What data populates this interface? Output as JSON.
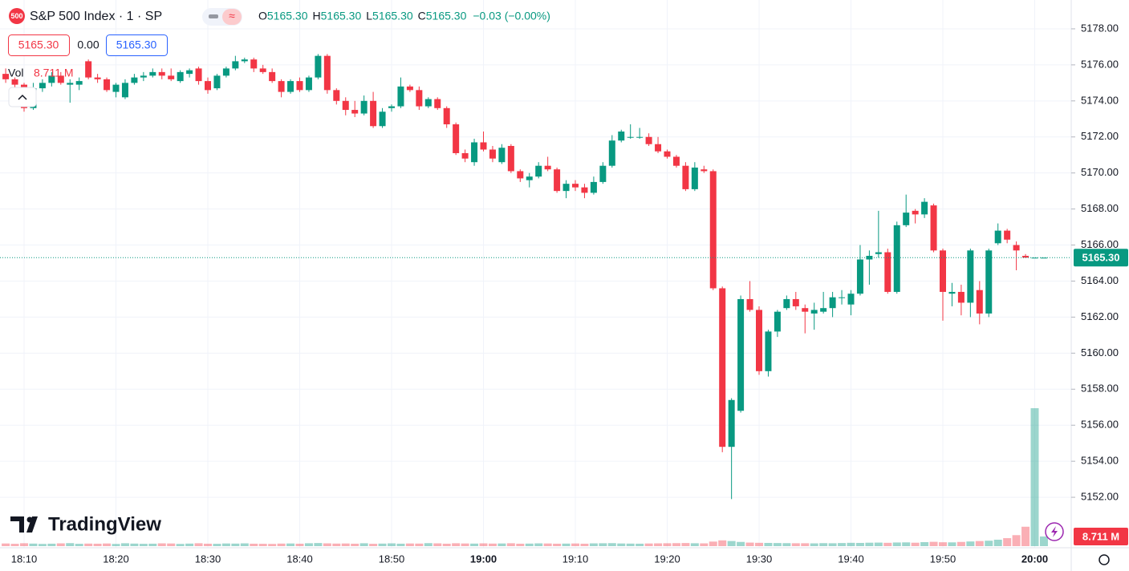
{
  "header": {
    "badge": "500",
    "title": "S&P 500 Index · 1 · SP",
    "ohlc": [
      {
        "key": "O",
        "value": "5165.30"
      },
      {
        "key": "H",
        "value": "5165.30"
      },
      {
        "key": "L",
        "value": "5165.30"
      },
      {
        "key": "C",
        "value": "5165.30"
      }
    ],
    "change": "−0.03 (−0.00%)",
    "boxes": [
      "5165.30",
      "0.00",
      "5165.30"
    ],
    "watermark": "TradingView"
  },
  "chart_data": {
    "type": "candlestick",
    "up_color": "#089981",
    "down_color": "#f23645",
    "x": [
      "18:08",
      "18:09",
      "18:10",
      "18:11",
      "18:12",
      "18:13",
      "18:14",
      "18:15",
      "18:16",
      "18:17",
      "18:18",
      "18:19",
      "18:20",
      "18:21",
      "18:22",
      "18:23",
      "18:24",
      "18:25",
      "18:26",
      "18:27",
      "18:28",
      "18:29",
      "18:30",
      "18:31",
      "18:32",
      "18:33",
      "18:34",
      "18:35",
      "18:36",
      "18:37",
      "18:38",
      "18:39",
      "18:40",
      "18:41",
      "18:42",
      "18:43",
      "18:44",
      "18:45",
      "18:46",
      "18:47",
      "18:48",
      "18:49",
      "18:50",
      "18:51",
      "18:52",
      "18:53",
      "18:54",
      "18:55",
      "18:56",
      "18:57",
      "18:58",
      "18:59",
      "19:00",
      "19:01",
      "19:02",
      "19:03",
      "19:04",
      "19:05",
      "19:06",
      "19:07",
      "19:08",
      "19:09",
      "19:10",
      "19:11",
      "19:12",
      "19:13",
      "19:14",
      "19:15",
      "19:16",
      "19:17",
      "19:18",
      "19:19",
      "19:20",
      "19:21",
      "19:22",
      "19:23",
      "19:24",
      "19:25",
      "19:26",
      "19:27",
      "19:28",
      "19:29",
      "19:30",
      "19:31",
      "19:32",
      "19:33",
      "19:34",
      "19:35",
      "19:36",
      "19:37",
      "19:38",
      "19:39",
      "19:40",
      "19:41",
      "19:42",
      "19:43",
      "19:44",
      "19:45",
      "19:46",
      "19:47",
      "19:48",
      "19:49",
      "19:50",
      "19:51",
      "19:52",
      "19:53",
      "19:54",
      "19:55",
      "19:56",
      "19:57",
      "19:58",
      "19:59",
      "20:00",
      "20:01"
    ],
    "ohlc": [
      [
        5175.5,
        5175.8,
        5175.0,
        5175.2
      ],
      [
        5175.2,
        5175.3,
        5174.7,
        5174.9
      ],
      [
        5174.9,
        5175.0,
        5173.4,
        5173.6
      ],
      [
        5173.6,
        5175.0,
        5173.5,
        5174.7
      ],
      [
        5174.7,
        5175.2,
        5174.5,
        5175.0
      ],
      [
        5175.0,
        5175.6,
        5174.8,
        5175.4
      ],
      [
        5175.4,
        5175.6,
        5174.9,
        5175.0
      ],
      [
        5174.9,
        5175.2,
        5173.9,
        5175.0
      ],
      [
        5174.9,
        5175.3,
        5174.6,
        5175.1
      ],
      [
        5176.2,
        5176.3,
        5175.2,
        5175.3
      ],
      [
        5175.3,
        5175.5,
        5175.0,
        5175.2
      ],
      [
        5175.2,
        5175.3,
        5174.5,
        5174.6
      ],
      [
        5174.5,
        5175.0,
        5174.2,
        5174.9
      ],
      [
        5174.2,
        5175.2,
        5174.1,
        5175.0
      ],
      [
        5175.0,
        5175.5,
        5174.9,
        5175.3
      ],
      [
        5175.3,
        5175.6,
        5175.1,
        5175.4
      ],
      [
        5175.4,
        5175.8,
        5175.3,
        5175.6
      ],
      [
        5175.6,
        5175.8,
        5175.2,
        5175.4
      ],
      [
        5175.4,
        5175.8,
        5175.1,
        5175.2
      ],
      [
        5175.1,
        5175.7,
        5175.0,
        5175.6
      ],
      [
        5175.5,
        5175.8,
        5175.3,
        5175.7
      ],
      [
        5175.8,
        5175.9,
        5174.9,
        5175.1
      ],
      [
        5175.1,
        5175.3,
        5174.4,
        5174.6
      ],
      [
        5174.7,
        5175.5,
        5174.6,
        5175.4
      ],
      [
        5175.4,
        5175.9,
        5175.3,
        5175.8
      ],
      [
        5175.8,
        5176.5,
        5175.7,
        5176.2
      ],
      [
        5176.2,
        5176.4,
        5176.1,
        5176.3
      ],
      [
        5176.3,
        5176.4,
        5175.6,
        5175.8
      ],
      [
        5175.8,
        5176.0,
        5175.5,
        5175.6
      ],
      [
        5175.6,
        5175.8,
        5175.0,
        5175.1
      ],
      [
        5175.1,
        5175.2,
        5174.2,
        5174.5
      ],
      [
        5174.5,
        5175.2,
        5174.4,
        5175.1
      ],
      [
        5175.1,
        5175.3,
        5174.5,
        5174.6
      ],
      [
        5174.6,
        5175.4,
        5174.5,
        5175.3
      ],
      [
        5175.3,
        5176.6,
        5175.2,
        5176.5
      ],
      [
        5176.5,
        5176.6,
        5174.4,
        5174.6
      ],
      [
        5174.6,
        5174.7,
        5173.8,
        5174.0
      ],
      [
        5174.0,
        5174.2,
        5173.2,
        5173.5
      ],
      [
        5173.5,
        5174.0,
        5173.1,
        5173.3
      ],
      [
        5173.3,
        5174.3,
        5173.2,
        5174.0
      ],
      [
        5174.0,
        5174.5,
        5172.5,
        5172.6
      ],
      [
        5172.6,
        5173.6,
        5172.5,
        5173.4
      ],
      [
        5173.6,
        5173.8,
        5173.4,
        5173.7
      ],
      [
        5173.7,
        5175.3,
        5173.6,
        5174.8
      ],
      [
        5174.8,
        5174.9,
        5174.5,
        5174.6
      ],
      [
        5174.6,
        5174.8,
        5173.5,
        5173.7
      ],
      [
        5173.7,
        5174.2,
        5173.6,
        5174.1
      ],
      [
        5174.1,
        5174.2,
        5173.5,
        5173.6
      ],
      [
        5173.6,
        5173.7,
        5172.5,
        5172.7
      ],
      [
        5172.7,
        5172.8,
        5171.0,
        5171.1
      ],
      [
        5171.1,
        5171.3,
        5170.6,
        5170.8
      ],
      [
        5170.6,
        5171.9,
        5170.4,
        5171.7
      ],
      [
        5171.7,
        5172.3,
        5171.2,
        5171.3
      ],
      [
        5171.3,
        5171.5,
        5170.6,
        5170.8
      ],
      [
        5170.6,
        5171.6,
        5170.5,
        5171.4
      ],
      [
        5171.5,
        5171.6,
        5170.0,
        5170.1
      ],
      [
        5170.1,
        5170.2,
        5169.5,
        5169.7
      ],
      [
        5169.6,
        5170.0,
        5169.2,
        5169.8
      ],
      [
        5169.8,
        5170.6,
        5169.7,
        5170.4
      ],
      [
        5170.4,
        5170.9,
        5170.1,
        5170.2
      ],
      [
        5170.2,
        5170.3,
        5168.9,
        5169.0
      ],
      [
        5169.0,
        5169.6,
        5168.6,
        5169.4
      ],
      [
        5169.4,
        5169.6,
        5169.0,
        5169.2
      ],
      [
        5169.2,
        5169.4,
        5168.6,
        5168.9
      ],
      [
        5168.9,
        5169.8,
        5168.8,
        5169.5
      ],
      [
        5169.5,
        5170.6,
        5169.4,
        5170.4
      ],
      [
        5170.4,
        5172.1,
        5170.3,
        5171.8
      ],
      [
        5171.8,
        5172.4,
        5171.7,
        5172.3
      ],
      [
        5172.0,
        5172.7,
        5171.9,
        5172.0
      ],
      [
        5172.0,
        5172.5,
        5171.9,
        5172.0
      ],
      [
        5172.0,
        5172.2,
        5171.5,
        5171.6
      ],
      [
        5171.6,
        5172.0,
        5171.1,
        5171.2
      ],
      [
        5171.2,
        5171.3,
        5170.8,
        5170.9
      ],
      [
        5170.9,
        5171.0,
        5170.3,
        5170.4
      ],
      [
        5170.4,
        5170.6,
        5169.0,
        5169.1
      ],
      [
        5169.1,
        5170.6,
        5169.0,
        5170.3
      ],
      [
        5170.2,
        5170.4,
        5170.0,
        5170.1
      ],
      [
        5170.1,
        5170.2,
        5163.5,
        5163.6
      ],
      [
        5163.6,
        5163.7,
        5154.5,
        5154.8
      ],
      [
        5154.8,
        5157.5,
        5151.9,
        5157.4
      ],
      [
        5156.8,
        5163.2,
        5156.7,
        5163.0
      ],
      [
        5163.0,
        5164.0,
        5162.3,
        5162.4
      ],
      [
        5162.4,
        5162.6,
        5158.8,
        5159.0
      ],
      [
        5159.0,
        5161.3,
        5158.7,
        5161.2
      ],
      [
        5161.2,
        5162.4,
        5160.9,
        5162.3
      ],
      [
        5162.5,
        5163.2,
        5162.4,
        5163.0
      ],
      [
        5163.0,
        5163.4,
        5162.4,
        5162.6
      ],
      [
        5162.5,
        5162.7,
        5161.1,
        5162.3
      ],
      [
        5162.2,
        5162.8,
        5161.3,
        5162.4
      ],
      [
        5162.3,
        5163.4,
        5162.2,
        5162.5
      ],
      [
        5162.5,
        5163.4,
        5162.0,
        5163.1
      ],
      [
        5163.1,
        5163.5,
        5162.7,
        5163.1
      ],
      [
        5162.7,
        5163.5,
        5162.1,
        5163.3
      ],
      [
        5163.3,
        5166.0,
        5163.2,
        5165.2
      ],
      [
        5165.2,
        5165.7,
        5163.8,
        5165.4
      ],
      [
        5165.5,
        5167.9,
        5165.3,
        5165.6
      ],
      [
        5165.6,
        5165.8,
        5163.3,
        5163.4
      ],
      [
        5163.4,
        5167.3,
        5163.3,
        5167.1
      ],
      [
        5167.1,
        5168.8,
        5167.0,
        5167.8
      ],
      [
        5167.9,
        5168.0,
        5167.2,
        5167.7
      ],
      [
        5167.7,
        5168.6,
        5167.5,
        5168.4
      ],
      [
        5168.2,
        5168.3,
        5165.6,
        5165.7
      ],
      [
        5165.7,
        5165.8,
        5161.8,
        5163.4
      ],
      [
        5163.3,
        5163.9,
        5162.6,
        5163.4
      ],
      [
        5163.4,
        5163.8,
        5162.1,
        5162.8
      ],
      [
        5162.8,
        5165.8,
        5162.0,
        5165.7
      ],
      [
        5163.5,
        5164.0,
        5161.6,
        5162.2
      ],
      [
        5162.2,
        5165.8,
        5162.0,
        5165.7
      ],
      [
        5166.1,
        5167.2,
        5166.0,
        5166.8
      ],
      [
        5166.8,
        5166.9,
        5166.1,
        5166.3
      ],
      [
        5166.0,
        5166.2,
        5164.6,
        5165.7
      ],
      [
        5165.4,
        5165.5,
        5165.3,
        5165.3
      ],
      [
        5165.3,
        5165.3,
        5165.3,
        5165.3
      ],
      [
        5165.3,
        5165.3,
        5165.3,
        5165.3
      ]
    ],
    "volume": {
      "name": "Vol",
      "last_label": "8.711 M",
      "values": [
        2.4,
        2.1,
        2.6,
        2.3,
        2.0,
        2.2,
        2.5,
        2.7,
        2.1,
        2.3,
        2.2,
        2.4,
        2.0,
        2.6,
        2.3,
        2.1,
        2.2,
        2.5,
        2.4,
        2.0,
        2.3,
        2.6,
        2.2,
        2.1,
        2.4,
        2.3,
        2.5,
        2.2,
        2.1,
        2.0,
        2.3,
        2.4,
        2.2,
        2.6,
        2.8,
        2.5,
        2.3,
        2.4,
        2.2,
        2.6,
        2.1,
        2.3,
        2.5,
        2.2,
        2.4,
        2.3,
        2.7,
        2.5,
        2.2,
        2.6,
        2.4,
        2.3,
        2.5,
        2.3,
        2.4,
        2.6,
        2.2,
        2.3,
        2.5,
        2.4,
        2.2,
        2.3,
        2.4,
        2.2,
        2.5,
        2.6,
        2.7,
        2.4,
        2.3,
        2.2,
        2.4,
        2.5,
        2.6,
        2.7,
        2.8,
        2.6,
        2.5,
        4.1,
        5.2,
        4.6,
        3.8,
        3.2,
        3.0,
        2.9,
        2.8,
        2.7,
        2.6,
        2.6,
        2.5,
        2.7,
        2.6,
        2.8,
        3.0,
        2.9,
        3.1,
        3.2,
        3.0,
        3.3,
        3.4,
        3.1,
        3.6,
        3.9,
        3.5,
        3.4,
        3.8,
        4.2,
        4.6,
        4.9,
        5.8,
        7.2,
        9.9,
        17.5,
        124.3,
        8.711
      ]
    },
    "ylim": [
      5149.2,
      5179.6
    ],
    "yticks": [
      {
        "value": 5152,
        "label": "5152.00"
      },
      {
        "value": 5154,
        "label": "5154.00"
      },
      {
        "value": 5156,
        "label": "5156.00"
      },
      {
        "value": 5158,
        "label": "5158.00"
      },
      {
        "value": 5160,
        "label": "5160.00"
      },
      {
        "value": 5162,
        "label": "5162.00"
      },
      {
        "value": 5164,
        "label": "5164.00"
      },
      {
        "value": 5166,
        "label": "5166.00"
      },
      {
        "value": 5168,
        "label": "5168.00"
      },
      {
        "value": 5170,
        "label": "5170.00"
      },
      {
        "value": 5172,
        "label": "5172.00"
      },
      {
        "value": 5174,
        "label": "5174.00"
      },
      {
        "value": 5176,
        "label": "5176.00"
      },
      {
        "value": 5178,
        "label": "5178.00"
      }
    ],
    "xticks": [
      "18:10",
      "18:20",
      "18:30",
      "18:40",
      "18:50",
      "19:00",
      "19:10",
      "19:20",
      "19:30",
      "19:40",
      "19:50",
      "20:00"
    ],
    "bold_xticks": [
      "19:00",
      "20:00"
    ],
    "last_price": {
      "value": 5165.3,
      "label": "5165.30"
    },
    "grid": true
  }
}
